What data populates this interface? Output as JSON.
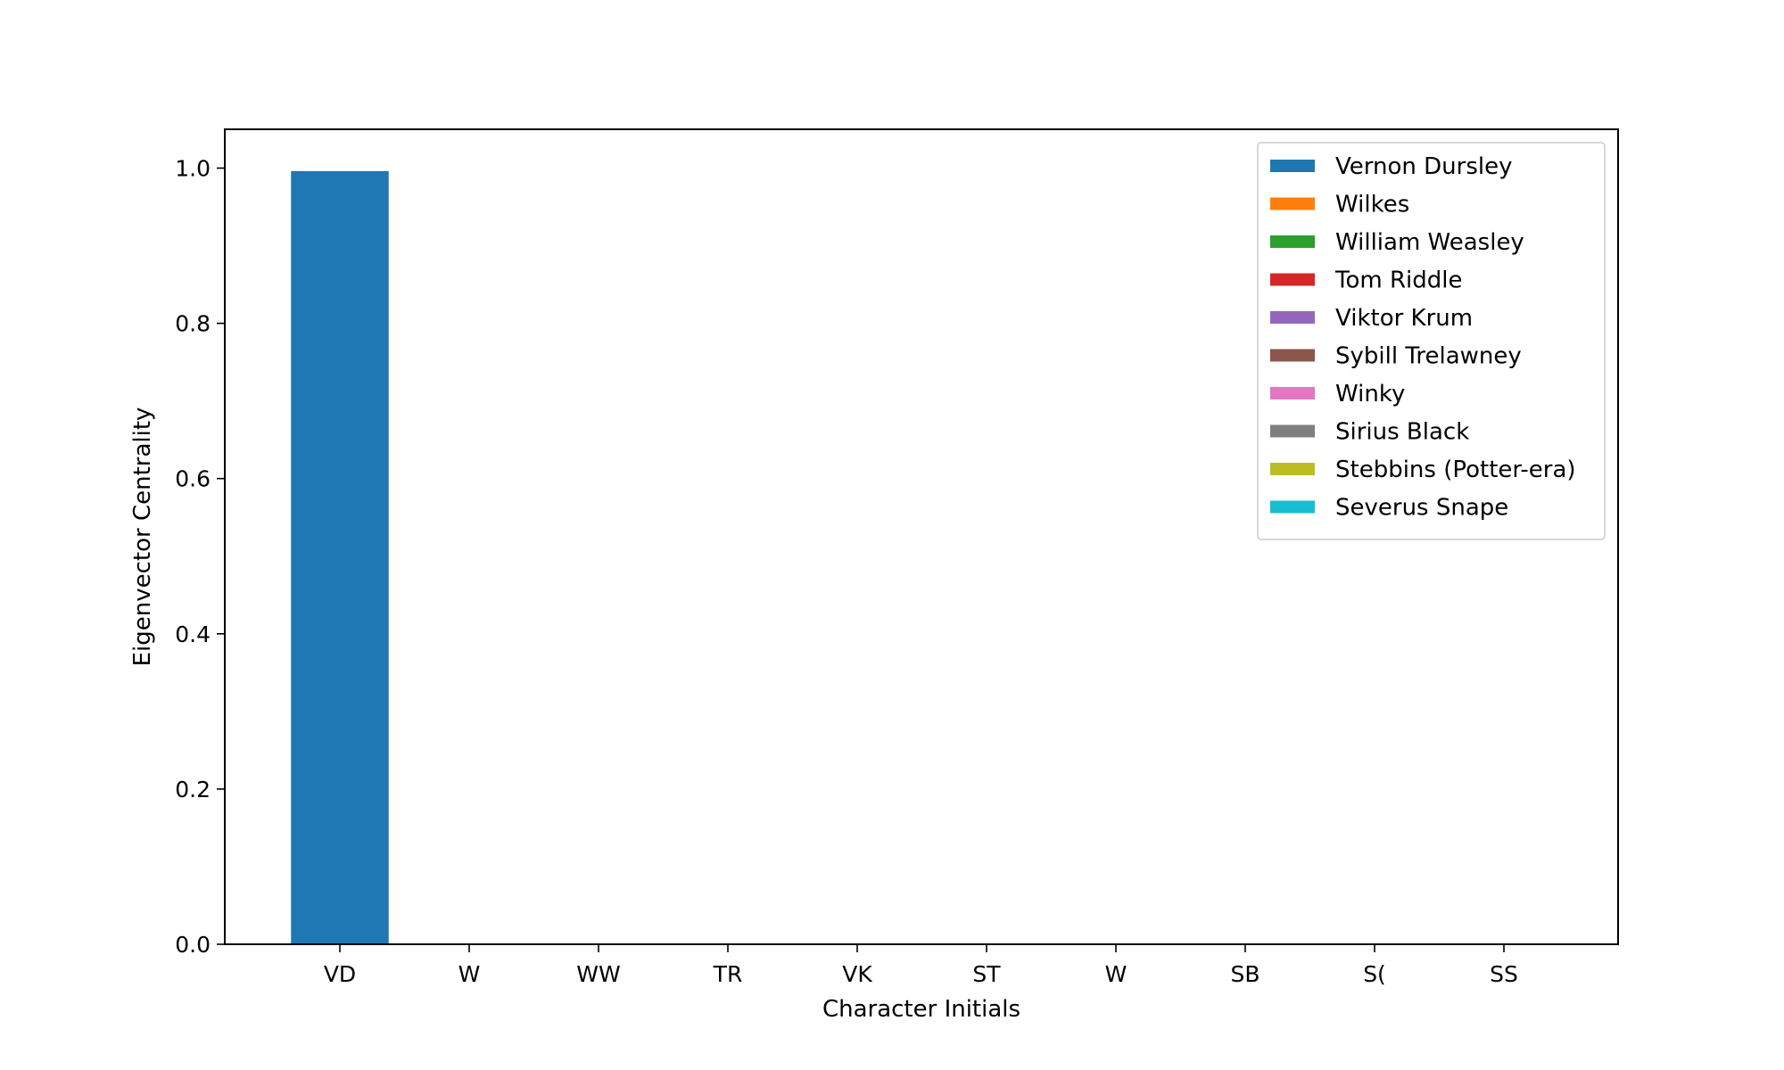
{
  "chart_data": {
    "type": "bar",
    "categories": [
      "VD",
      "W",
      "WW",
      "TR",
      "VK",
      "ST",
      "W",
      "SB",
      "S(",
      "SS"
    ],
    "values": [
      0.997,
      0,
      0,
      0,
      0,
      0,
      0,
      0,
      0,
      0
    ],
    "series_names": [
      "Vernon Dursley",
      "Wilkes",
      "William Weasley",
      "Tom Riddle",
      "Viktor Krum",
      "Sybill Trelawney",
      "Winky",
      "Sirius Black",
      "Stebbins (Potter-era)",
      "Severus Snape"
    ],
    "colors": [
      "#1f77b4",
      "#ff7f0e",
      "#2ca02c",
      "#d62728",
      "#9467bd",
      "#8c564b",
      "#e377c2",
      "#7f7f7f",
      "#bcbd22",
      "#17becf"
    ],
    "xlabel": "Character Initials",
    "ylabel": "Eigenvector Centrality",
    "ylim": [
      0,
      1.05
    ],
    "yticks": [
      0.0,
      0.2,
      0.4,
      0.6,
      0.8,
      1.0
    ],
    "ytick_labels": [
      "0.0",
      "0.2",
      "0.4",
      "0.6",
      "0.8",
      "1.0"
    ],
    "grid": false,
    "legend_position": "top-right"
  }
}
